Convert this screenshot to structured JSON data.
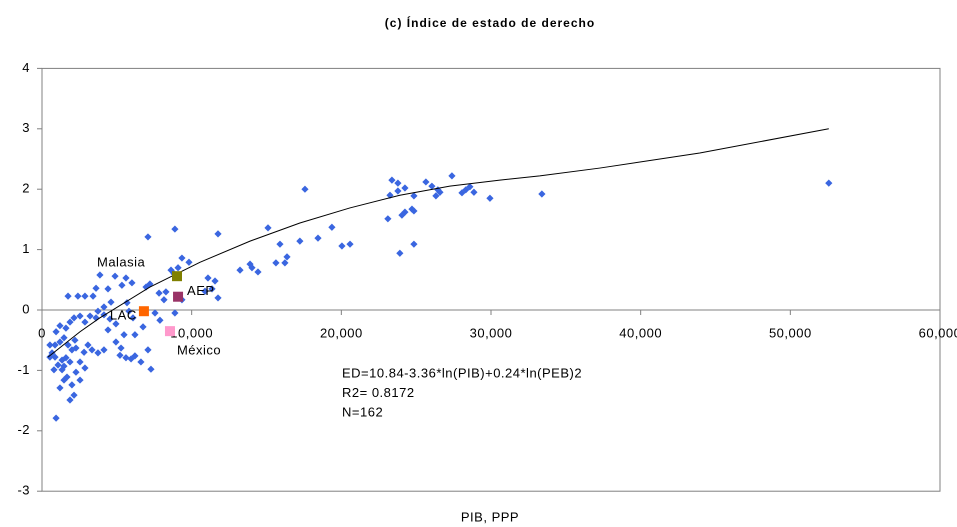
{
  "chart_data": {
    "type": "scatter",
    "title": "(c) Índice de estado de derecho",
    "x_label": "PIB, PPP",
    "annotations": [
      "ED=10.84-3.36*ln(PIB)+0.24*ln(PEB)2",
      "R2= 0.8172",
      "N=162"
    ],
    "xlim": [
      0,
      60000
    ],
    "ylim": [
      -3,
      4
    ],
    "xticks": [
      0,
      {
        "value": 10000,
        "label": "10,000"
      },
      {
        "value": 20000,
        "label": "20,000"
      },
      {
        "value": 30000,
        "label": "30,000"
      },
      {
        "value": 40000,
        "label": "40,000"
      },
      {
        "value": 50000,
        "label": "50,000"
      },
      {
        "value": 60000,
        "label": "60,000"
      }
    ],
    "yticks": [
      -3,
      -2,
      -1,
      0,
      1,
      2,
      3,
      4
    ],
    "series": [
      {
        "color": "#3a66e0",
        "x": [
          52570,
          27390,
          25650,
          23380,
          23780,
          23780,
          23250,
          23110,
          24250,
          24850,
          26050,
          26590,
          26320,
          26450,
          24720,
          24850,
          23910,
          24850,
          28320,
          28590,
          28860,
          28060,
          29930,
          33400,
          24250,
          24050,
          17570,
          15100,
          19370,
          17230,
          18440,
          20040,
          20580,
          15900,
          16370,
          16230,
          15630,
          13230,
          14030,
          14430,
          13900,
          11760,
          8880,
          7080,
          11090,
          11560,
          11360,
          11760,
          10890,
          9820,
          9350,
          9090,
          8820,
          8620,
          8280,
          7820,
          6950,
          7210,
          8150,
          9350,
          8880,
          7550,
          7880,
          7080,
          7280,
          6610,
          6750,
          6210,
          6210,
          5610,
          5950,
          5280,
          5480,
          6080,
          5810,
          5680,
          6010,
          5610,
          5340,
          4880,
          4410,
          3870,
          3610,
          3410,
          2870,
          2400,
          1740,
          4610,
          4140,
          3740,
          4140,
          4540,
          4940,
          3610,
          3210,
          2870,
          2540,
          4410,
          4940,
          5210,
          4140,
          3740,
          3340,
          3070,
          2810,
          2540,
          2870,
          2270,
          2540,
          2000,
          2140,
          1870,
          1670,
          1470,
          1200,
          940,
          800,
          1070,
          530,
          670,
          870,
          1200,
          1470,
          1740,
          2000,
          2270,
          1600,
          1340,
          940,
          1200,
          1600,
          1870,
          2140,
          2200,
          1870,
          1340,
          870,
          530,
          1470
        ],
        "values": [
          2.1,
          2.22,
          2.12,
          2.15,
          2.1,
          1.97,
          1.9,
          1.51,
          2.02,
          1.89,
          2.05,
          1.95,
          1.89,
          1.99,
          1.67,
          1.64,
          0.94,
          1.09,
          1.99,
          2.04,
          1.95,
          1.94,
          1.85,
          1.92,
          1.62,
          1.57,
          2.0,
          1.36,
          1.37,
          1.14,
          1.19,
          1.06,
          1.09,
          1.09,
          0.88,
          0.78,
          0.78,
          0.66,
          0.7,
          0.63,
          0.76,
          1.26,
          1.34,
          1.21,
          0.53,
          0.48,
          0.35,
          0.2,
          0.31,
          0.79,
          0.86,
          0.7,
          0.6,
          0.66,
          0.3,
          0.28,
          0.38,
          0.43,
          0.17,
          0.17,
          -0.05,
          -0.05,
          -0.17,
          -0.66,
          -0.98,
          -0.86,
          -0.28,
          -0.41,
          -0.76,
          -0.79,
          -0.81,
          -0.63,
          -0.41,
          -0.13,
          -0.02,
          0.12,
          0.45,
          0.53,
          0.41,
          0.56,
          0.35,
          0.58,
          0.36,
          0.23,
          0.23,
          0.23,
          0.23,
          0.13,
          0.05,
          -0.02,
          -0.08,
          -0.15,
          -0.23,
          -0.13,
          -0.1,
          -0.2,
          -0.1,
          -0.33,
          -0.53,
          -0.75,
          -0.66,
          -0.71,
          -0.66,
          -0.58,
          -0.7,
          -0.86,
          -0.96,
          -1.03,
          -1.16,
          -1.24,
          -1.41,
          -1.49,
          -1.11,
          -1.16,
          -1.29,
          -1.79,
          -0.99,
          -0.91,
          -0.78,
          -0.71,
          -0.58,
          -0.53,
          -0.46,
          -0.58,
          -0.66,
          -0.63,
          -0.79,
          -0.83,
          -0.36,
          -0.26,
          -0.3,
          -0.2,
          -0.13,
          -0.5,
          -0.86,
          -0.99,
          -0.78,
          -0.58,
          -0.93
        ]
      }
    ],
    "highlights": [
      {
        "name": "Malasia",
        "x": 9020,
        "y": 0.56,
        "color": "#808000"
      },
      {
        "name": "AEP",
        "x": 9090,
        "y": 0.22,
        "color": "#993366"
      },
      {
        "name": "LAC",
        "x": 6810,
        "y": -0.02,
        "color": "#ff6600"
      },
      {
        "name": "México",
        "x": 8550,
        "y": -0.35,
        "color": "#ff99cc"
      }
    ],
    "trendline": {
      "color": "#000000",
      "x": [
        400,
        2540,
        3870,
        7210,
        10550,
        13900,
        17230,
        20570,
        23910,
        27250,
        30590,
        33260,
        37270,
        43950,
        52570
      ],
      "values": [
        -0.78,
        -0.36,
        -0.13,
        0.38,
        0.79,
        1.14,
        1.44,
        1.69,
        1.9,
        2.05,
        2.15,
        2.22,
        2.35,
        2.6,
        3.0
      ]
    }
  }
}
